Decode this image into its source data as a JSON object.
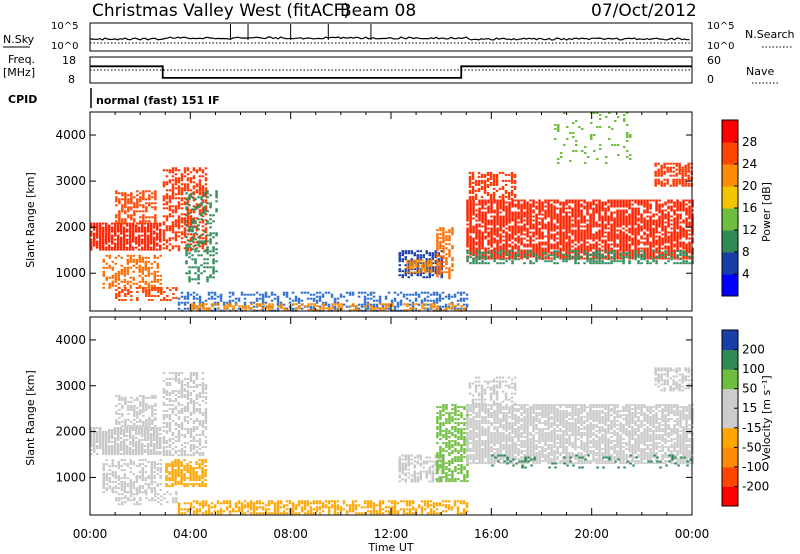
{
  "header": {
    "site": "Christmas Valley West (fitACF)",
    "beam": "Beam 08",
    "date": "07/Oct/2012"
  },
  "panels": {
    "nsky_label": "N.Sky",
    "nsky_tick_top": "10^5",
    "nsky_tick_bot": "10^0",
    "nsearch_label": "N.Search",
    "freq_label_1": "Freq.",
    "freq_label_2": "[MHz]",
    "freq_tick_top": "18",
    "freq_tick_bot": "8",
    "nave_label": "Nave",
    "nave_tick_top": "60",
    "nave_tick_bot": "0",
    "cpid_label": "CPID",
    "cpid_text": "normal (fast) 151 IF"
  },
  "colorbars": {
    "power": {
      "label": "Power [dB]",
      "ticks": [
        "28",
        "24",
        "20",
        "16",
        "12",
        "8",
        "4"
      ],
      "colors": [
        "#0000ff",
        "#1a3ea8",
        "#2e8b57",
        "#6fbf3f",
        "#f5c400",
        "#ff8c00",
        "#ff4500",
        "#ff0000"
      ]
    },
    "velocity": {
      "label": "Velocity [m s⁻¹]",
      "ticks": [
        "200",
        "100",
        "50",
        "15",
        "-15",
        "-50",
        "-100",
        "-200"
      ],
      "colors": [
        "#1a3ea8",
        "#2e8b57",
        "#6fbf3f",
        "#cccccc",
        "#cccccc",
        "#ffa500",
        "#ff8c00",
        "#ff4500",
        "#ff0000"
      ]
    }
  },
  "chart_data": [
    {
      "type": "heatmap",
      "name": "power",
      "ylabel": "Slant Range [km]",
      "xlabel": "Time UT",
      "x_ticks": [
        "00:00",
        "04:00",
        "08:00",
        "12:00",
        "16:00",
        "20:00",
        "00:00"
      ],
      "xlim_hours": [
        0,
        24
      ],
      "y_ticks": [
        "1000",
        "2000",
        "3000",
        "4000"
      ],
      "ylim": [
        180,
        4500
      ],
      "regions": [
        {
          "t0": 0.0,
          "t1": 2.8,
          "r0": 1500,
          "r1": 2100,
          "color": "#ff2200",
          "density": 0.85
        },
        {
          "t0": 1.0,
          "t1": 2.6,
          "r0": 2100,
          "r1": 2800,
          "color": "#ff4500",
          "density": 0.55
        },
        {
          "t0": 0.5,
          "t1": 2.8,
          "r0": 700,
          "r1": 1400,
          "color": "#ff6a00",
          "density": 0.5
        },
        {
          "t0": 2.9,
          "t1": 4.6,
          "r0": 1500,
          "r1": 3300,
          "color": "#ff3300",
          "density": 0.55
        },
        {
          "t0": 3.8,
          "t1": 5.0,
          "r0": 800,
          "r1": 2800,
          "color": "#2e8b57",
          "density": 0.35
        },
        {
          "t0": 1.0,
          "t1": 3.5,
          "r0": 400,
          "r1": 700,
          "color": "#ff4500",
          "density": 0.5
        },
        {
          "t0": 3.5,
          "t1": 15.0,
          "r0": 200,
          "r1": 600,
          "color": "#2e6fd0",
          "density": 0.45
        },
        {
          "t0": 4.0,
          "t1": 15.0,
          "r0": 200,
          "r1": 350,
          "color": "#ff8c00",
          "density": 0.5
        },
        {
          "t0": 12.3,
          "t1": 14.0,
          "r0": 900,
          "r1": 1500,
          "color": "#1a3ea8",
          "density": 0.65
        },
        {
          "t0": 12.6,
          "t1": 13.6,
          "r0": 1000,
          "r1": 1300,
          "color": "#ff8c00",
          "density": 0.7
        },
        {
          "t0": 13.8,
          "t1": 14.5,
          "r0": 900,
          "r1": 2000,
          "color": "#ff6a00",
          "density": 0.6
        },
        {
          "t0": 15.0,
          "t1": 24.0,
          "r0": 1300,
          "r1": 2600,
          "color": "#ff2200",
          "density": 0.8
        },
        {
          "t0": 15.0,
          "t1": 24.0,
          "r0": 1200,
          "r1": 1500,
          "color": "#2e8b57",
          "density": 0.45
        },
        {
          "t0": 15.1,
          "t1": 17.0,
          "r0": 2600,
          "r1": 3200,
          "color": "#ff3300",
          "density": 0.5
        },
        {
          "t0": 22.5,
          "t1": 24.0,
          "r0": 2900,
          "r1": 3400,
          "color": "#ff3300",
          "density": 0.7
        },
        {
          "t0": 18.5,
          "t1": 21.5,
          "r0": 3400,
          "r1": 4500,
          "color": "#6fbf3f",
          "density": 0.15
        }
      ]
    },
    {
      "type": "heatmap",
      "name": "velocity",
      "ylabel": "Slant Range [km]",
      "xlabel": "Time UT",
      "x_ticks": [
        "00:00",
        "04:00",
        "08:00",
        "12:00",
        "16:00",
        "20:00",
        "00:00"
      ],
      "xlim_hours": [
        0,
        24
      ],
      "y_ticks": [
        "1000",
        "2000",
        "3000",
        "4000"
      ],
      "ylim": [
        180,
        4500
      ],
      "regions": [
        {
          "t0": 0.0,
          "t1": 2.8,
          "r0": 1500,
          "r1": 2100,
          "color": "#c8c8c8",
          "density": 0.85
        },
        {
          "t0": 1.0,
          "t1": 2.6,
          "r0": 2100,
          "r1": 2800,
          "color": "#c8c8c8",
          "density": 0.55
        },
        {
          "t0": 0.5,
          "t1": 2.8,
          "r0": 700,
          "r1": 1400,
          "color": "#c8c8c8",
          "density": 0.5
        },
        {
          "t0": 2.9,
          "t1": 4.6,
          "r0": 1500,
          "r1": 3300,
          "color": "#c8c8c8",
          "density": 0.55
        },
        {
          "t0": 3.0,
          "t1": 4.6,
          "r0": 800,
          "r1": 1400,
          "color": "#ffa500",
          "density": 0.7
        },
        {
          "t0": 1.0,
          "t1": 3.5,
          "r0": 400,
          "r1": 700,
          "color": "#c8c8c8",
          "density": 0.45
        },
        {
          "t0": 3.5,
          "t1": 15.0,
          "r0": 200,
          "r1": 500,
          "color": "#ffa500",
          "density": 0.6
        },
        {
          "t0": 12.3,
          "t1": 14.0,
          "r0": 900,
          "r1": 1500,
          "color": "#c8c8c8",
          "density": 0.6
        },
        {
          "t0": 13.8,
          "t1": 15.0,
          "r0": 900,
          "r1": 2600,
          "color": "#6fbf3f",
          "density": 0.6
        },
        {
          "t0": 15.0,
          "t1": 24.0,
          "r0": 1300,
          "r1": 2600,
          "color": "#c8c8c8",
          "density": 0.8
        },
        {
          "t0": 15.1,
          "t1": 17.0,
          "r0": 2600,
          "r1": 3200,
          "color": "#c8c8c8",
          "density": 0.5
        },
        {
          "t0": 22.5,
          "t1": 24.0,
          "r0": 2900,
          "r1": 3400,
          "color": "#c8c8c8",
          "density": 0.6
        },
        {
          "t0": 16.0,
          "t1": 24.0,
          "r0": 1200,
          "r1": 1500,
          "color": "#2e8b57",
          "density": 0.15
        }
      ]
    }
  ]
}
